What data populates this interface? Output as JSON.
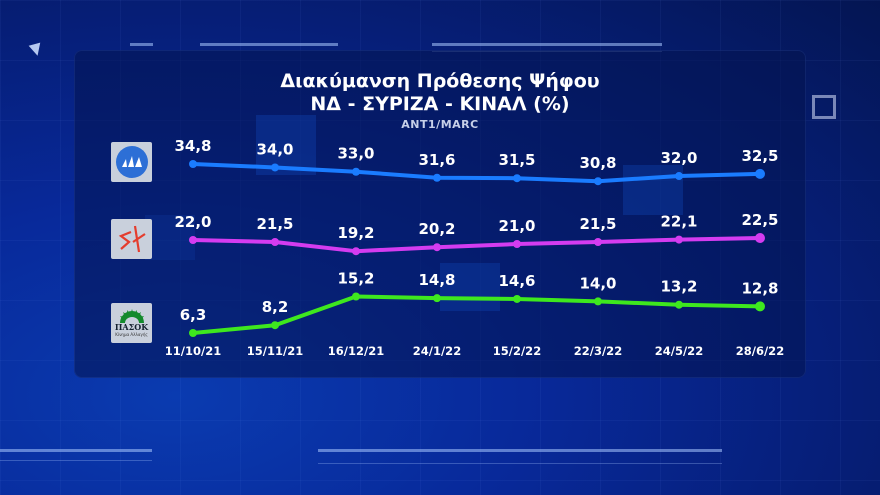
{
  "title_line1": "Διακύμανση Πρόθεσης Ψήφου",
  "title_line2": "ΝΔ - ΣΥΡΙΖΑ - ΚΙΝΑΛ (%)",
  "source": "ANT1/MARC",
  "parties": [
    {
      "name": "ΝΔ",
      "logo": "nd-logo",
      "color": "#1a7cff"
    },
    {
      "name": "ΣΥΡΙΖΑ",
      "logo": "syriza-logo",
      "color": "#d43cf0"
    },
    {
      "name": "ΠΑΣΟΚ-ΚΙΝΑΛ",
      "logo": "pasok-logo",
      "logo_text": "ΠΑΣΟΚ",
      "logo_subtext": "Κίνημα Αλλαγής",
      "color": "#3ee81e"
    }
  ],
  "chart_data": {
    "type": "line",
    "title": "Διακύμανση Πρόθεσης Ψήφου ΝΔ - ΣΥΡΙΖΑ - ΚΙΝΑΛ (%)",
    "subtitle": "ANT1/MARC",
    "xlabel": "",
    "ylabel": "%",
    "x": [
      "11/10/21",
      "15/11/21",
      "16/12/21",
      "24/1/22",
      "15/2/22",
      "22/3/22",
      "24/5/22",
      "28/6/22"
    ],
    "series": [
      {
        "name": "ΝΔ",
        "color": "#1a7cff",
        "values": [
          34.8,
          34.0,
          33.0,
          31.6,
          31.5,
          30.8,
          32.0,
          32.5
        ],
        "labels": [
          "34,8",
          "34,0",
          "33,0",
          "31,6",
          "31,5",
          "30,8",
          "32,0",
          "32,5"
        ]
      },
      {
        "name": "ΣΥΡΙΖΑ",
        "color": "#d43cf0",
        "values": [
          22.0,
          21.5,
          19.2,
          20.2,
          21.0,
          21.5,
          22.1,
          22.5
        ],
        "labels": [
          "22,0",
          "21,5",
          "19,2",
          "20,2",
          "21,0",
          "21,5",
          "22,1",
          "22,5"
        ]
      },
      {
        "name": "ΚΙΝΑΛ",
        "color": "#3ee81e",
        "values": [
          6.3,
          8.2,
          15.2,
          14.8,
          14.6,
          14.0,
          13.2,
          12.8
        ],
        "labels": [
          "6,3",
          "8,2",
          "15,2",
          "14,8",
          "14,6",
          "14,0",
          "13,2",
          "12,8"
        ]
      }
    ],
    "grid": false,
    "legend": "party logos on left"
  }
}
